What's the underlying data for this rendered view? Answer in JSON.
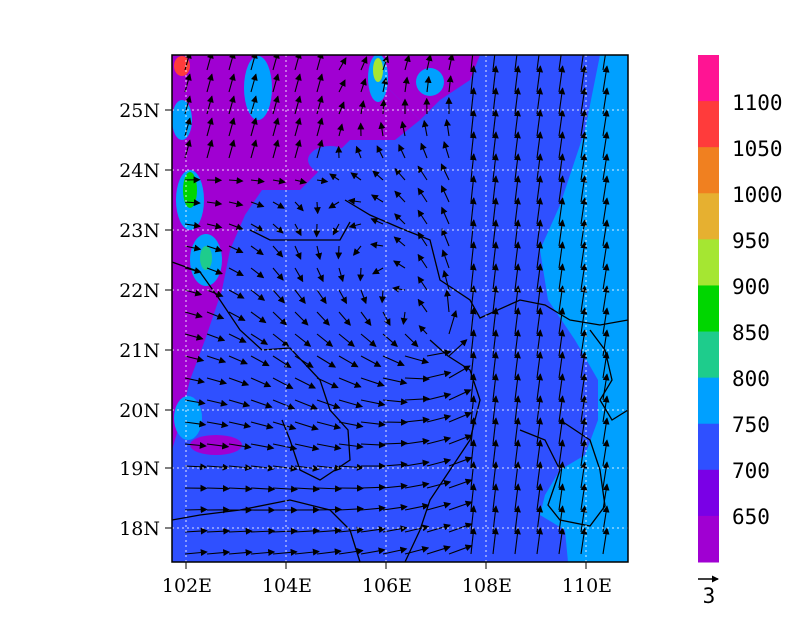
{
  "map": {
    "lat_labels": [
      "25N",
      "24N",
      "23N",
      "22N",
      "21N",
      "20N",
      "19N",
      "18N"
    ],
    "lon_labels": [
      "102E",
      "104E",
      "106E",
      "108E",
      "110E"
    ],
    "lat_values": [
      25,
      24,
      23,
      22,
      21,
      20,
      19,
      18
    ],
    "lon_values": [
      102,
      104,
      106,
      108,
      110
    ],
    "domain": {
      "lon_range": [
        101.6,
        110.8
      ],
      "lat_range": [
        17.4,
        25.9
      ]
    },
    "gridlines": "dotted",
    "field": "filled contours with wind vectors",
    "vector_reference": "3"
  },
  "colorbar": {
    "placement": "right",
    "labels": [
      "1100",
      "1050",
      "1000",
      "950",
      "900",
      "850",
      "800",
      "750",
      "700",
      "650"
    ],
    "colors_top_to_bottom": [
      "#ff1493",
      "#ff3b3b",
      "#f08020",
      "#e6b030",
      "#a5e632",
      "#00d600",
      "#1ecc8c",
      "#00a0ff",
      "#2f50ff",
      "#7a00e6",
      "#a000d2"
    ]
  },
  "colors": {
    "background_field": "#2f50ff",
    "east_band": "#00a0ff",
    "west_band": "#a000d2",
    "vector": "#000000",
    "coast": "#000000"
  }
}
